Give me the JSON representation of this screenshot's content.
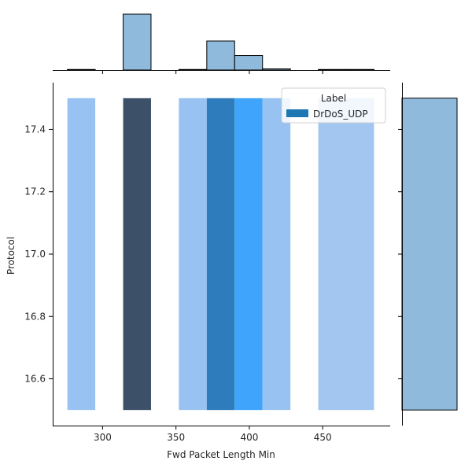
{
  "chart_data": {
    "type": "heatmap",
    "title": "",
    "xlabel": "Fwd Packet Length Min",
    "ylabel": "Protocol",
    "xlim": [
      266,
      496
    ],
    "ylim": [
      16.45,
      17.55
    ],
    "xticks": [
      300,
      350,
      400,
      450
    ],
    "yticks": [
      16.6,
      16.8,
      17.0,
      17.2,
      17.4
    ],
    "bins": {
      "x_edges": [
        276,
        295,
        314,
        333,
        352,
        371,
        390,
        409,
        428,
        447,
        466,
        485
      ],
      "y_range": [
        16.5,
        17.5
      ]
    },
    "joint_cells": [
      {
        "x0": 276,
        "x1": 295,
        "intensity": 0.05
      },
      {
        "x0": 314,
        "x1": 333,
        "intensity": 1.0
      },
      {
        "x0": 352,
        "x1": 371,
        "intensity": 0.05
      },
      {
        "x0": 371,
        "x1": 390,
        "intensity": 0.6
      },
      {
        "x0": 390,
        "x1": 409,
        "intensity": 0.3
      },
      {
        "x0": 409,
        "x1": 428,
        "intensity": 0.05
      },
      {
        "x0": 447,
        "x1": 466,
        "intensity": 0.02
      },
      {
        "x0": 466,
        "x1": 485,
        "intensity": 0.02
      }
    ],
    "marginal_x": {
      "edges": [
        276,
        295,
        314,
        333,
        352,
        371,
        390,
        409,
        428,
        447,
        466,
        485
      ],
      "counts": [
        1,
        0,
        100,
        0,
        1,
        52,
        26,
        2,
        0,
        1,
        1
      ]
    },
    "marginal_y": {
      "edges": [
        16.5,
        17.5
      ],
      "counts": [
        1
      ]
    },
    "legend": {
      "title": "Label",
      "placement": "top-right",
      "entries": [
        {
          "name": "DrDoS_UDP",
          "color": "#1f77b4"
        }
      ]
    },
    "colors": {
      "marginal_fill": "#8fbadb",
      "joint_low": "#a9c8ef",
      "joint_mid": "#3fa4fb",
      "joint_high": "#3c5068",
      "legend_patch": "#1f77b4"
    }
  }
}
